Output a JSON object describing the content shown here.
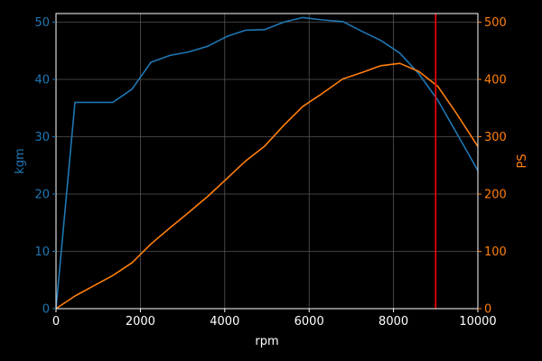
{
  "chart_data": {
    "type": "line",
    "xlabel": "rpm",
    "ylabel_left": "kgm",
    "ylabel_right": "PS",
    "xlim": [
      0,
      10000
    ],
    "ylim_left": [
      0,
      51.5
    ],
    "ylim_right": [
      0,
      515
    ],
    "xticks": [
      0,
      2000,
      4000,
      6000,
      8000,
      10000
    ],
    "yticks_left": [
      0,
      10,
      20,
      30,
      40,
      50
    ],
    "yticks_right": [
      0,
      100,
      200,
      300,
      400,
      500
    ],
    "grid": true,
    "colors": {
      "background": "#000000",
      "torque": "#1f77b4",
      "power": "#ff7f0e",
      "redline": "#ff0000",
      "axes": "#ffffff",
      "grid": "#555555"
    },
    "redline_x": 9000,
    "series": [
      {
        "axis": "left",
        "color": "#1f77b4",
        "x": [
          0,
          450,
          900,
          1350,
          1800,
          2250,
          2700,
          3150,
          3600,
          4050,
          4500,
          4950,
          5400,
          5850,
          6300,
          6800,
          7250,
          7700,
          8150,
          8600,
          9050,
          9500,
          10000
        ],
        "y": [
          0,
          36.0,
          36.0,
          36.0,
          38.3,
          43.0,
          44.2,
          44.8,
          45.8,
          47.5,
          48.6,
          48.7,
          50.0,
          50.8,
          50.4,
          50.1,
          48.4,
          46.8,
          44.6,
          41.0,
          36.4,
          30.6,
          24.1
        ]
      },
      {
        "axis": "right",
        "color": "#ff7f0e",
        "x": [
          0,
          450,
          900,
          1350,
          1800,
          2250,
          2700,
          3150,
          3600,
          4050,
          4500,
          4950,
          5400,
          5850,
          6300,
          6800,
          7250,
          7700,
          8150,
          8600,
          9050,
          9500,
          10000
        ],
        "y": [
          0,
          22,
          40,
          58,
          80,
          113,
          141,
          168,
          196,
          227,
          258,
          284,
          320,
          353,
          375,
          401,
          412,
          424,
          428,
          414,
          388,
          340,
          283
        ]
      }
    ]
  }
}
